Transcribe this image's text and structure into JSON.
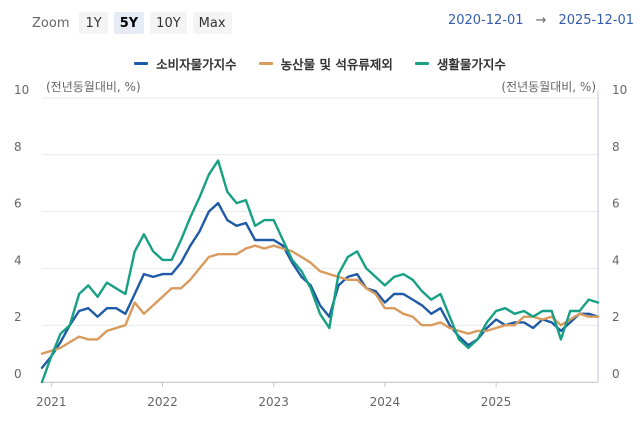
{
  "toolbar": {
    "zoom_label": "Zoom",
    "buttons": [
      "1Y",
      "5Y",
      "10Y",
      "Max"
    ],
    "active": "5Y",
    "range_from": "2020-12-01",
    "range_arrow": "→",
    "range_to": "2025-12-01"
  },
  "colors": {
    "cpi": "#1f5aa6",
    "core": "#d99a5e",
    "living": "#17a083",
    "grid": "#e9e9e9"
  },
  "chart_data": {
    "type": "line",
    "ylabel_left": "(전년동월대비, %)",
    "ylabel_right": "(전년동월대비, %)",
    "ylim": [
      0,
      10
    ],
    "yticks": [
      0,
      2,
      4,
      6,
      8,
      10
    ],
    "xticks": [
      "2021",
      "2022",
      "2023",
      "2024",
      "2025"
    ],
    "x_start": "2020-12",
    "series": [
      {
        "name": "소비자물가지수",
        "color": "#1f5aa6",
        "values": [
          0.5,
          0.9,
          1.4,
          2.0,
          2.5,
          2.6,
          2.3,
          2.6,
          2.6,
          2.4,
          3.1,
          3.8,
          3.7,
          3.8,
          3.8,
          4.2,
          4.8,
          5.3,
          6.0,
          6.3,
          5.7,
          5.5,
          5.6,
          5.0,
          5.0,
          5.0,
          4.8,
          4.2,
          3.7,
          3.4,
          2.7,
          2.3,
          3.4,
          3.7,
          3.8,
          3.3,
          3.2,
          2.8,
          3.1,
          3.1,
          2.9,
          2.7,
          2.4,
          2.6,
          2.0,
          1.6,
          1.3,
          1.5,
          1.9,
          2.2,
          2.0,
          2.1,
          2.1,
          1.9,
          2.2,
          2.1,
          1.8,
          2.1,
          2.4,
          2.4,
          2.3
        ]
      },
      {
        "name": "농산물 및 석유류제외",
        "color": "#d99a5e",
        "values": [
          1.0,
          1.1,
          1.2,
          1.4,
          1.6,
          1.5,
          1.5,
          1.8,
          1.9,
          2.0,
          2.8,
          2.4,
          2.7,
          3.0,
          3.3,
          3.3,
          3.6,
          4.0,
          4.4,
          4.5,
          4.5,
          4.5,
          4.7,
          4.8,
          4.7,
          4.8,
          4.7,
          4.6,
          4.4,
          4.2,
          3.9,
          3.8,
          3.7,
          3.6,
          3.6,
          3.3,
          3.1,
          2.6,
          2.6,
          2.4,
          2.3,
          2.0,
          2.0,
          2.1,
          1.9,
          1.8,
          1.7,
          1.8,
          1.8,
          1.9,
          2.0,
          2.0,
          2.3,
          2.3,
          2.2,
          2.3,
          2.0,
          2.2,
          2.4,
          2.3,
          2.3
        ]
      },
      {
        "name": "생활물가지수",
        "color": "#17a083",
        "values": [
          0.0,
          0.9,
          1.7,
          2.0,
          3.1,
          3.4,
          3.0,
          3.5,
          3.3,
          3.1,
          4.6,
          5.2,
          4.6,
          4.3,
          4.3,
          5.0,
          5.8,
          6.5,
          7.3,
          7.8,
          6.7,
          6.3,
          6.4,
          5.5,
          5.7,
          5.7,
          5.0,
          4.3,
          3.9,
          3.3,
          2.4,
          1.9,
          3.8,
          4.4,
          4.6,
          4.0,
          3.7,
          3.4,
          3.7,
          3.8,
          3.6,
          3.2,
          2.9,
          3.1,
          2.3,
          1.5,
          1.2,
          1.5,
          2.1,
          2.5,
          2.6,
          2.4,
          2.5,
          2.3,
          2.5,
          2.5,
          1.5,
          2.5,
          2.5,
          2.9,
          2.8
        ]
      }
    ]
  }
}
